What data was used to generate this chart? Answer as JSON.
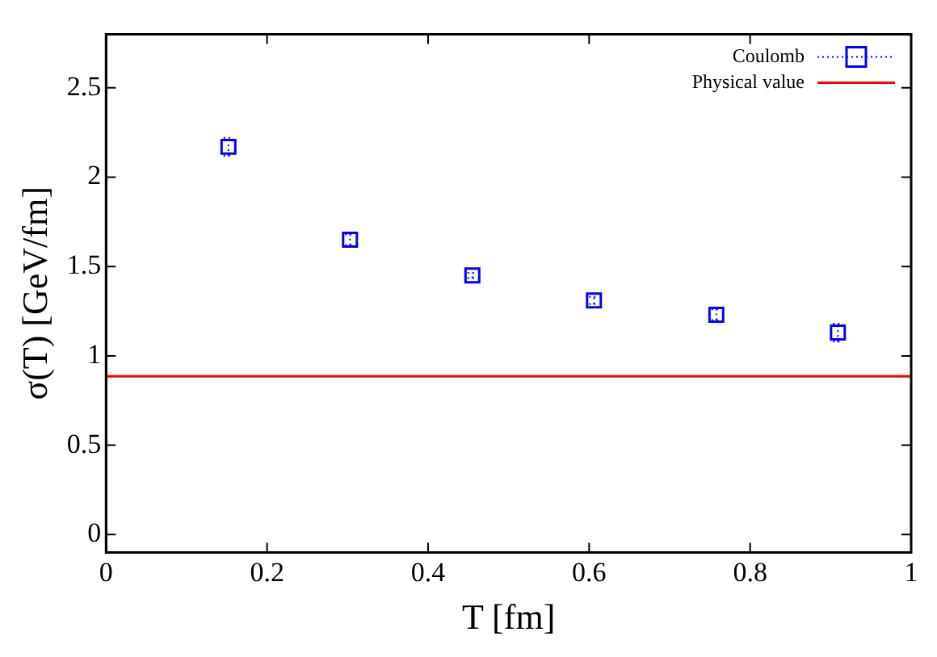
{
  "chart_data": {
    "type": "scatter",
    "xlabel": "T [fm]",
    "ylabel": "σ(T) [GeV/fm]",
    "series": [
      {
        "name": "Coulomb",
        "color": "#0000ff",
        "x": [
          0.152,
          0.303,
          0.455,
          0.606,
          0.758,
          0.909
        ],
        "values": [
          2.17,
          1.65,
          1.45,
          1.31,
          1.23,
          1.13
        ],
        "errors": [
          0.05,
          0.03,
          0.015,
          0.02,
          0.03,
          0.05
        ]
      }
    ],
    "ref_lines": [
      {
        "axis": "y",
        "value": 0.885,
        "label": "Physical value",
        "color": "#ff0000",
        "line_style": "solid"
      }
    ],
    "xlim": [
      0,
      1
    ],
    "xticks": [
      0,
      0.2,
      0.4,
      0.6,
      0.8,
      1
    ],
    "ylim": [
      -0.1,
      2.8
    ],
    "yticks": [
      0,
      0.5,
      1,
      1.5,
      2,
      2.5
    ],
    "marker": "square",
    "grid": false,
    "legend": "top right"
  }
}
